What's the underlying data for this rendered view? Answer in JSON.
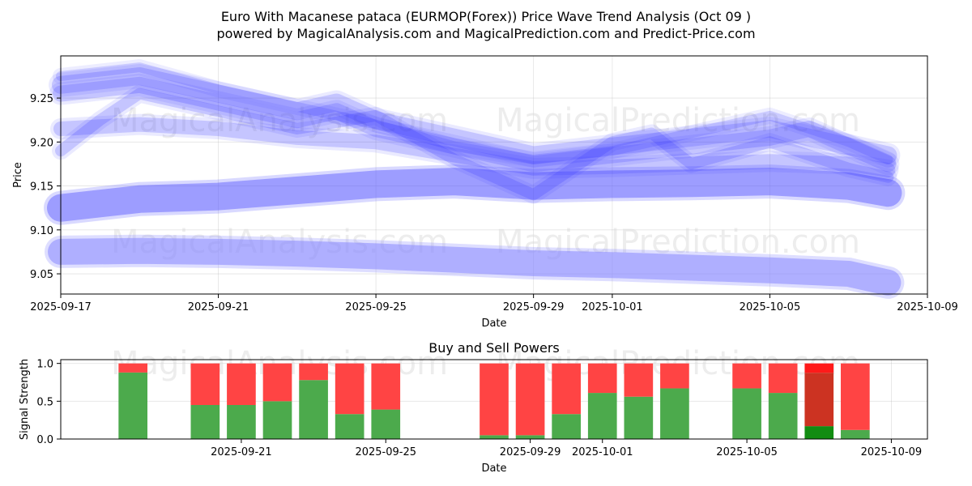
{
  "chart_data": [
    {
      "type": "line",
      "title": "Euro With Macanese pataca (EURMOP(Forex)) Price Wave Trend Analysis (Oct 09 )",
      "subtitle": "powered by MagicalAnalysis.com and MagicalPrediction.com and Predict-Price.com",
      "xlabel": "Date",
      "ylabel": "Price",
      "xlim": [
        "2025-09-17",
        "2025-10-09"
      ],
      "ylim": [
        9.027,
        9.298
      ],
      "x_ticks": [
        "2025-09-17",
        "2025-09-21",
        "2025-09-25",
        "2025-09-29",
        "2025-10-01",
        "2025-10-05",
        "2025-10-09"
      ],
      "y_ticks": [
        9.05,
        9.1,
        9.15,
        9.2,
        9.25
      ],
      "grid": true,
      "watermarks": [
        "MagicalAnalysis.com",
        "MagicalPrediction.com"
      ],
      "series": [
        {
          "name": "wave-long-low",
          "color": "#8888ff",
          "x": [
            "2025-09-17",
            "2025-09-19",
            "2025-09-21",
            "2025-09-23",
            "2025-09-25",
            "2025-09-27",
            "2025-09-29",
            "2025-10-01",
            "2025-10-03",
            "2025-10-05",
            "2025-10-07",
            "2025-10-08"
          ],
          "values": [
            9.075,
            9.076,
            9.075,
            9.073,
            9.07,
            9.066,
            9.062,
            9.06,
            9.057,
            9.054,
            9.05,
            9.04
          ]
        },
        {
          "name": "wave-long-mid",
          "color": "#5555ff",
          "x": [
            "2025-09-17",
            "2025-09-19",
            "2025-09-21",
            "2025-09-23",
            "2025-09-25",
            "2025-09-27",
            "2025-09-29",
            "2025-10-01",
            "2025-10-03",
            "2025-10-05",
            "2025-10-07",
            "2025-10-08"
          ],
          "values": [
            9.125,
            9.135,
            9.138,
            9.145,
            9.152,
            9.155,
            9.15,
            9.152,
            9.153,
            9.155,
            9.15,
            9.142
          ]
        },
        {
          "name": "wave-mid-1",
          "color": "#4444ff",
          "x": [
            "2025-09-17",
            "2025-09-19",
            "2025-09-21",
            "2025-09-23",
            "2025-09-24",
            "2025-09-25",
            "2025-09-27",
            "2025-09-29",
            "2025-10-01",
            "2025-10-03",
            "2025-10-05",
            "2025-10-07",
            "2025-10-08"
          ],
          "values": [
            9.265,
            9.275,
            9.255,
            9.235,
            9.245,
            9.225,
            9.205,
            9.185,
            9.195,
            9.205,
            9.215,
            9.195,
            9.185
          ]
        },
        {
          "name": "wave-mid-2",
          "color": "#4444ff",
          "x": [
            "2025-09-17",
            "2025-09-19",
            "2025-09-21",
            "2025-09-23",
            "2025-09-24",
            "2025-09-25",
            "2025-09-27",
            "2025-09-29",
            "2025-10-01",
            "2025-10-03",
            "2025-10-05",
            "2025-10-06",
            "2025-10-07",
            "2025-10-08"
          ],
          "values": [
            9.255,
            9.265,
            9.245,
            9.225,
            9.235,
            9.215,
            9.195,
            9.175,
            9.185,
            9.195,
            9.205,
            9.215,
            9.195,
            9.175
          ]
        },
        {
          "name": "wave-mid-3",
          "color": "#4444ff",
          "x": [
            "2025-09-17",
            "2025-09-19",
            "2025-09-21",
            "2025-09-23",
            "2025-09-25",
            "2025-09-27",
            "2025-09-29",
            "2025-10-01",
            "2025-10-03",
            "2025-10-05",
            "2025-10-07",
            "2025-10-08"
          ],
          "values": [
            9.215,
            9.22,
            9.215,
            9.205,
            9.2,
            9.185,
            9.17,
            9.172,
            9.175,
            9.178,
            9.175,
            9.168
          ]
        },
        {
          "name": "wave-short-1",
          "color": "#3333ff",
          "x": [
            "2025-09-17",
            "2025-09-18",
            "2025-09-19",
            "2025-09-21",
            "2025-09-23",
            "2025-09-25",
            "2025-09-27",
            "2025-09-29",
            "2025-10-01",
            "2025-10-02",
            "2025-10-03",
            "2025-10-05",
            "2025-10-07",
            "2025-10-08"
          ],
          "values": [
            9.19,
            9.225,
            9.255,
            9.235,
            9.215,
            9.23,
            9.18,
            9.14,
            9.2,
            9.21,
            9.175,
            9.2,
            9.17,
            9.16
          ]
        },
        {
          "name": "wave-short-2",
          "color": "#3333ff",
          "x": [
            "2025-09-17",
            "2025-09-19",
            "2025-09-21",
            "2025-09-23",
            "2025-09-25",
            "2025-09-27",
            "2025-09-29",
            "2025-10-01",
            "2025-10-03",
            "2025-10-05",
            "2025-10-07",
            "2025-10-08"
          ],
          "values": [
            9.275,
            9.285,
            9.26,
            9.24,
            9.22,
            9.195,
            9.18,
            9.19,
            9.21,
            9.23,
            9.2,
            9.18
          ]
        }
      ]
    },
    {
      "type": "bar",
      "title": "Buy and Sell Powers",
      "xlabel": "Date",
      "ylabel": "Signal Strength",
      "ylim": [
        0,
        1.05
      ],
      "y_ticks": [
        0.0,
        0.5,
        1.0
      ],
      "x_ticks": [
        "2025-09-21",
        "2025-09-25",
        "2025-09-29",
        "2025-10-01",
        "2025-10-05",
        "2025-10-09"
      ],
      "categories": [
        "2025-09-18",
        "2025-09-20",
        "2025-09-21",
        "2025-09-22",
        "2025-09-23",
        "2025-09-24",
        "2025-09-25",
        "2025-09-28",
        "2025-09-29",
        "2025-09-30",
        "2025-10-01",
        "2025-10-02",
        "2025-10-03",
        "2025-10-05",
        "2025-10-06",
        "2025-10-07",
        "2025-10-08"
      ],
      "series": [
        {
          "name": "Buy",
          "color": "#4caa4c",
          "values": [
            0.88,
            0.45,
            0.45,
            0.5,
            0.78,
            0.33,
            0.39,
            0.05,
            0.05,
            0.33,
            0.61,
            0.56,
            0.67,
            0.67,
            0.61,
            0.17,
            0.12
          ]
        },
        {
          "name": "Sell",
          "color": "#ff4444",
          "values": [
            0.12,
            0.55,
            0.55,
            0.5,
            0.22,
            0.67,
            0.61,
            0.95,
            0.95,
            0.67,
            0.39,
            0.44,
            0.33,
            0.33,
            0.39,
            0.83,
            0.88
          ]
        }
      ],
      "highlight": {
        "category": "2025-10-07",
        "buy_color": "#128c12",
        "sell_color": "#cc3322",
        "sell_top_color": "#ff1a1a"
      }
    }
  ]
}
